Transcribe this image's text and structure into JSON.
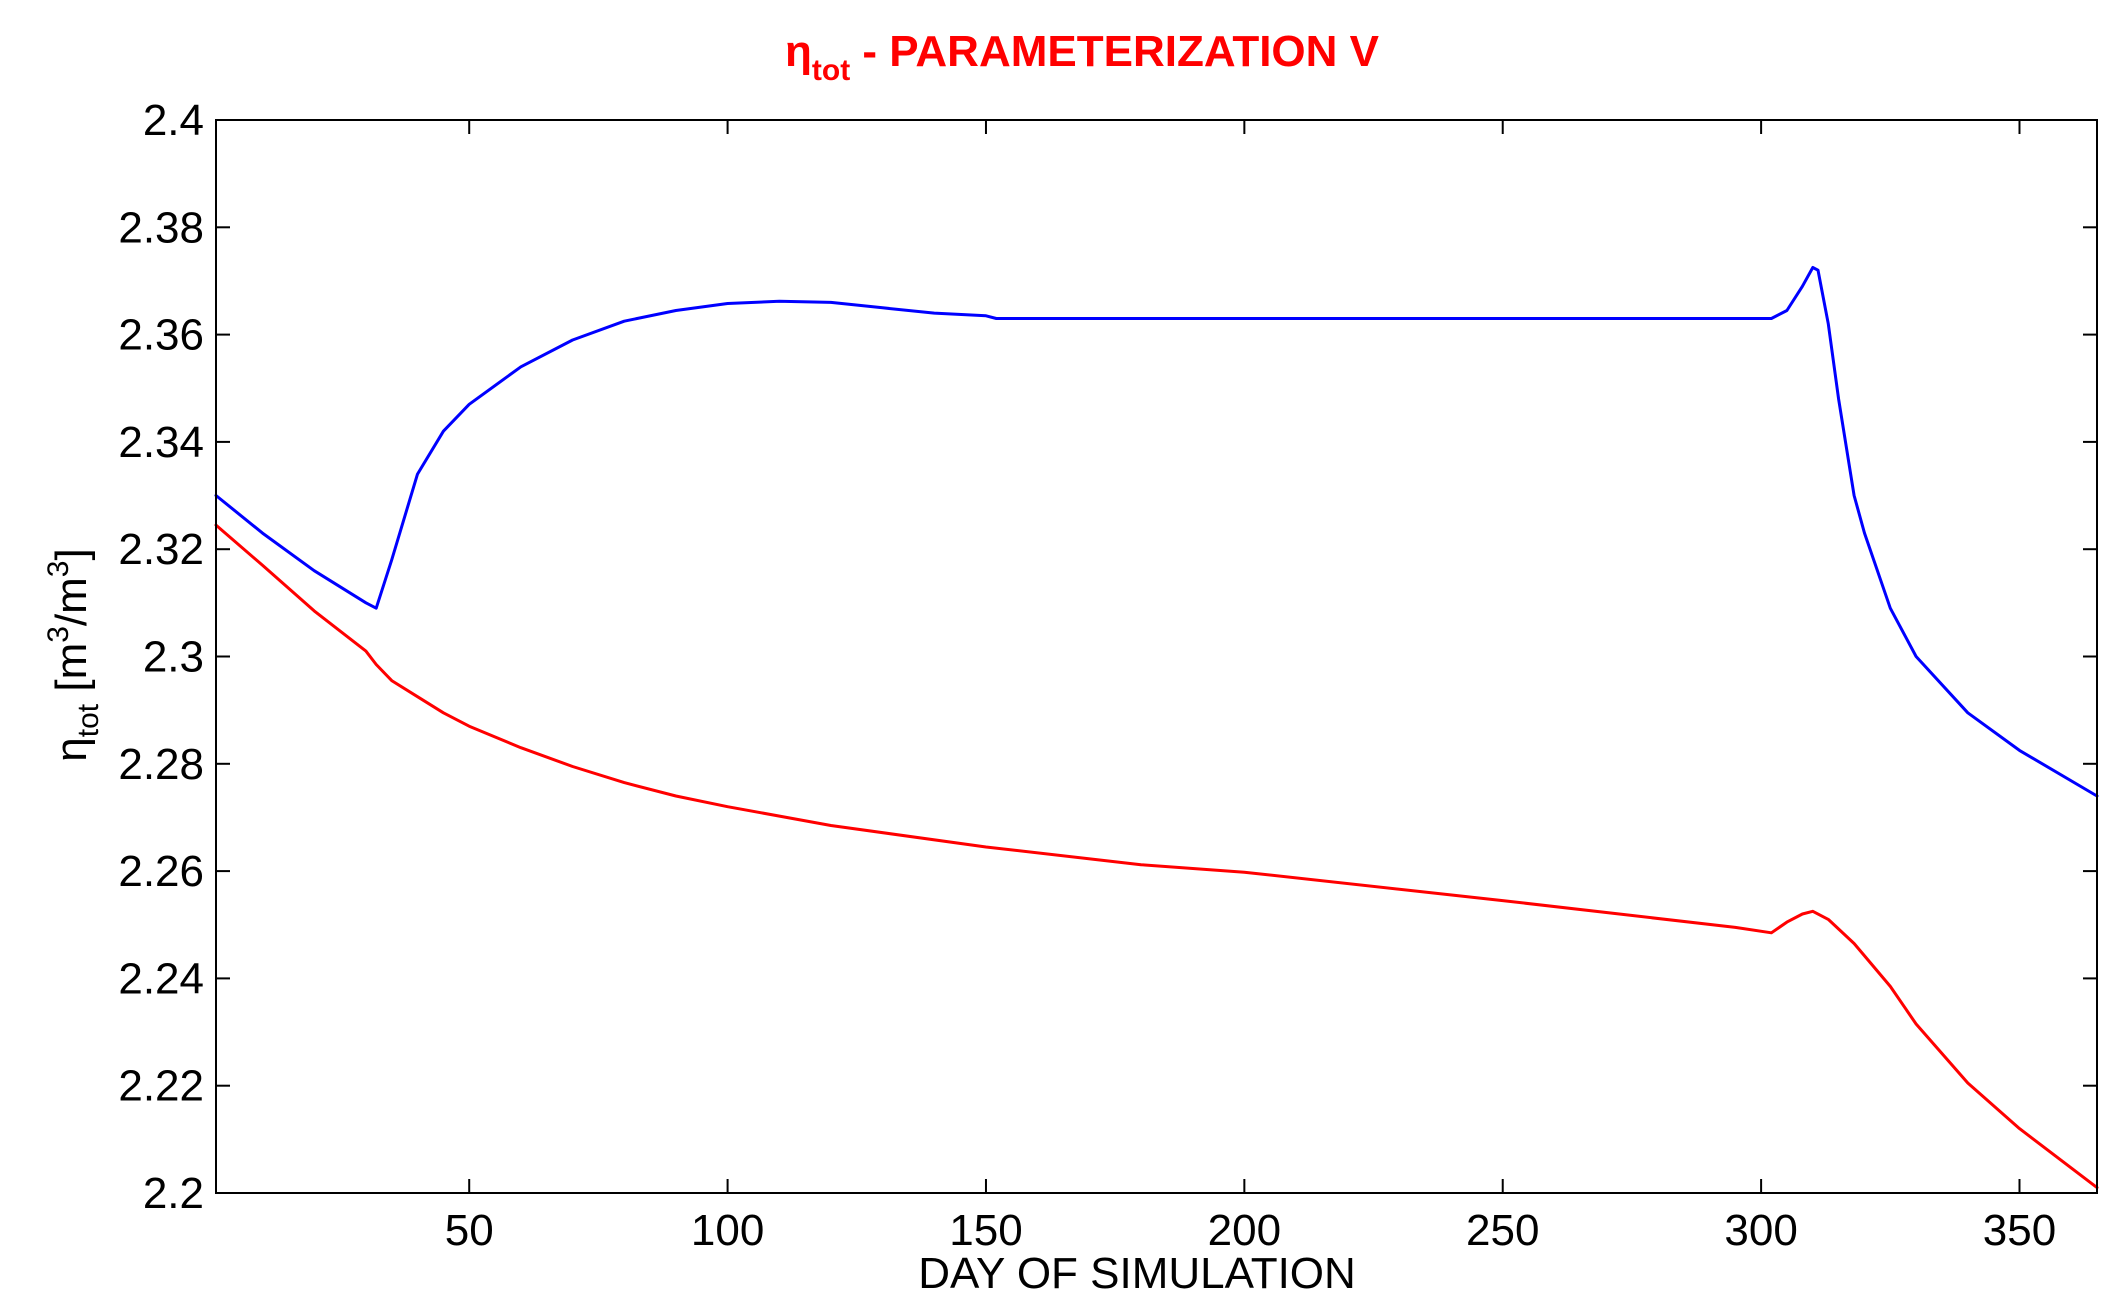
{
  "chart_data": {
    "type": "line",
    "title": {
      "symbol": "η",
      "subscript": "tot",
      "text": " - PARAMETERIZATION V",
      "color": "#ff0000"
    },
    "xlabel": "DAY OF SIMULATION",
    "ylabel": {
      "symbol": "η",
      "subscript": "tot",
      "unit_open": " [m",
      "unit_sup1": "3",
      "unit_mid": "/m",
      "unit_sup2": "3",
      "unit_close": "]"
    },
    "xlim": [
      1,
      365
    ],
    "ylim": [
      2.2,
      2.4
    ],
    "xticks": [
      50,
      100,
      150,
      200,
      250,
      300,
      350
    ],
    "xtick_labels": [
      "50",
      "100",
      "150",
      "200",
      "250",
      "300",
      "350"
    ],
    "yticks": [
      2.2,
      2.22,
      2.24,
      2.26,
      2.28,
      2.3,
      2.32,
      2.34,
      2.36,
      2.38,
      2.4
    ],
    "ytick_labels": [
      "2.2",
      "2.22",
      "2.24",
      "2.26",
      "2.28",
      "2.3",
      "2.32",
      "2.34",
      "2.36",
      "2.38",
      "2.4"
    ],
    "grid": false,
    "legend": "none",
    "series": [
      {
        "color": "#0000ff",
        "x": [
          1,
          10,
          20,
          30,
          32,
          35,
          40,
          45,
          50,
          60,
          70,
          80,
          90,
          100,
          110,
          120,
          130,
          140,
          150,
          152,
          200,
          250,
          302,
          305,
          308,
          310,
          311,
          313,
          315,
          318,
          320,
          325,
          330,
          340,
          350,
          365
        ],
        "y": [
          2.33,
          2.323,
          2.316,
          2.31,
          2.309,
          2.318,
          2.334,
          2.342,
          2.347,
          2.354,
          2.359,
          2.3625,
          2.3645,
          2.3658,
          2.3662,
          2.366,
          2.365,
          2.364,
          2.3635,
          2.363,
          2.363,
          2.363,
          2.363,
          2.3645,
          2.369,
          2.3725,
          2.372,
          2.362,
          2.348,
          2.33,
          2.323,
          2.309,
          2.3,
          2.2895,
          2.2825,
          2.274
        ]
      },
      {
        "color": "#ff0000",
        "x": [
          1,
          10,
          20,
          30,
          32,
          35,
          40,
          45,
          50,
          60,
          70,
          80,
          90,
          100,
          120,
          150,
          180,
          200,
          250,
          295,
          302,
          305,
          308,
          310,
          313,
          318,
          325,
          330,
          340,
          350,
          365
        ],
        "y": [
          2.3245,
          2.317,
          2.3085,
          2.301,
          2.2985,
          2.2955,
          2.2925,
          2.2895,
          2.287,
          2.283,
          2.2795,
          2.2765,
          2.274,
          2.272,
          2.2685,
          2.2645,
          2.2612,
          2.2598,
          2.2545,
          2.2495,
          2.2485,
          2.2505,
          2.252,
          2.2525,
          2.251,
          2.2465,
          2.2385,
          2.2315,
          2.2205,
          2.212,
          2.201
        ]
      }
    ]
  },
  "colors": {
    "blue_series": "#0000ff",
    "red_series": "#ff0000",
    "axes": "#000000",
    "title": "#ff0000",
    "background": "#ffffff"
  }
}
